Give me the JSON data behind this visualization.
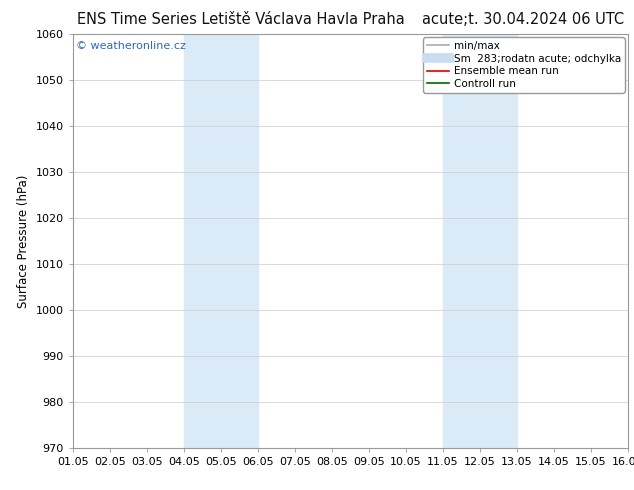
{
  "title_left": "ENS Time Series Letiště Václava Havla Praha",
  "title_right": "acute;t. 30.04.2024 06 UTC",
  "ylabel": "Surface Pressure (hPa)",
  "ylim": [
    970,
    1060
  ],
  "yticks": [
    970,
    980,
    990,
    1000,
    1010,
    1020,
    1030,
    1040,
    1050,
    1060
  ],
  "xlim_start": 0,
  "xlim_end": 15,
  "xtick_labels": [
    "01.05",
    "02.05",
    "03.05",
    "04.05",
    "05.05",
    "06.05",
    "07.05",
    "08.05",
    "09.05",
    "10.05",
    "11.05",
    "12.05",
    "13.05",
    "14.05",
    "15.05",
    "16.05"
  ],
  "shade_bands": [
    {
      "xmin": 3,
      "xmax": 5
    },
    {
      "xmin": 10,
      "xmax": 12
    }
  ],
  "shade_color": "#daeaf6",
  "watermark": "© weatheronline.cz",
  "watermark_color": "#3366bb",
  "bg_color": "#ffffff",
  "plot_bg_color": "#ffffff",
  "grid_color": "#cccccc",
  "legend_items": [
    {
      "label": "min/max",
      "color": "#aaaaaa",
      "lw": 1.2
    },
    {
      "label": "Sm  283;rodatn acute; odchylka",
      "color": "#c8ddf0",
      "lw": 7
    },
    {
      "label": "Ensemble mean run",
      "color": "#dd0000",
      "lw": 1.2
    },
    {
      "label": "Controll run",
      "color": "#006600",
      "lw": 1.2
    }
  ],
  "border_color": "#999999",
  "title_fontsize": 10.5,
  "tick_fontsize": 8,
  "ylabel_fontsize": 8.5,
  "legend_fontsize": 7.5,
  "watermark_fontsize": 8
}
